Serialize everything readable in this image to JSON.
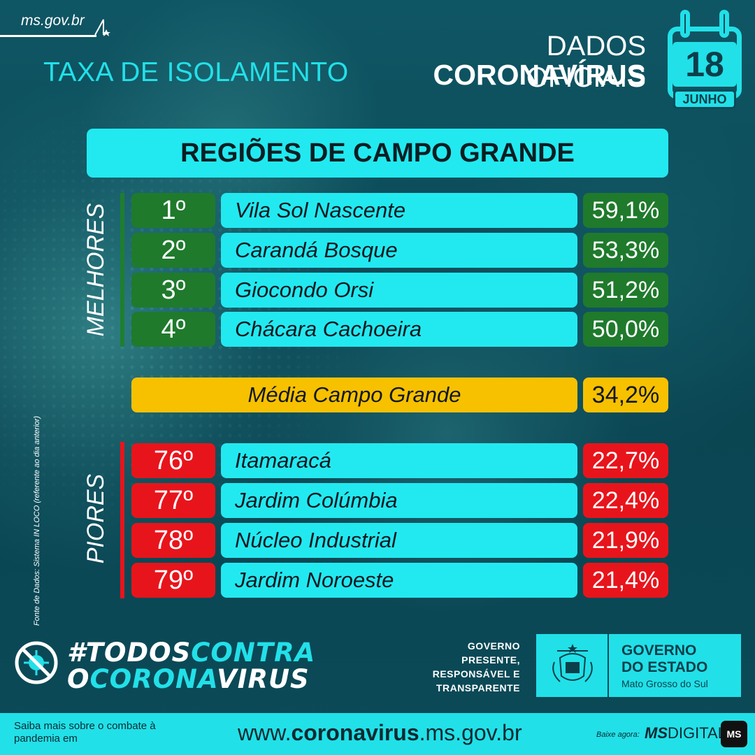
{
  "header": {
    "site": "ms.gov.br",
    "title": "TAXA DE ISOLAMENTO",
    "dados_line1": "DADOS OFICIAIS",
    "dados_line2": "CORONAVÍRUS",
    "calendar": {
      "day": "18",
      "month": "JUNHO"
    }
  },
  "main": {
    "section_title": "REGIÕES DE CAMPO GRANDE",
    "melhores_label": "MELHORES",
    "piores_label": "PIORES",
    "source_note": "Fonte de Dados: Sistema IN LOCO (referente ao dia anterior)",
    "melhores": [
      {
        "rank": "1º",
        "name": "Vila Sol Nascente",
        "pct": "59,1%"
      },
      {
        "rank": "2º",
        "name": "Carandá Bosque",
        "pct": "53,3%"
      },
      {
        "rank": "3º",
        "name": "Giocondo Orsi",
        "pct": "51,2%"
      },
      {
        "rank": "4º",
        "name": "Chácara Cachoeira",
        "pct": "50,0%"
      }
    ],
    "media": {
      "name": "Média Campo Grande",
      "pct": "34,2%"
    },
    "piores": [
      {
        "rank": "76º",
        "name": "Itamaracá",
        "pct": "22,7%"
      },
      {
        "rank": "77º",
        "name": "Jardim Colúmbia",
        "pct": "22,4%"
      },
      {
        "rank": "78º",
        "name": "Núcleo Industrial",
        "pct": "21,9%"
      },
      {
        "rank": "79º",
        "name": "Jardim Noroeste",
        "pct": "21,4%"
      }
    ]
  },
  "footer": {
    "hashtag": {
      "p1": "#TODOS",
      "p2": "CONTRA",
      "p3": "O",
      "p4": "CORONA",
      "p5": "VIRUS"
    },
    "gov_tag": [
      "GOVERNO",
      "PRESENTE,",
      "RESPONSÁVEL E",
      "TRANSPARENTE"
    ],
    "gov_box": {
      "l1": "GOVERNO",
      "l2": "DO ESTADO",
      "l3": "Mato Grosso do Sul"
    },
    "saiba": "Saiba mais sobre o combate à pandemia em",
    "url": {
      "pre": "www.",
      "bold": "coronavirus",
      "post": ".ms.gov.br"
    },
    "baixe": "Baixe agora:",
    "app": {
      "bold": "MS",
      "rest": "DIGITAL",
      "icon": "MS"
    }
  },
  "colors": {
    "cyan": "#22e9f0",
    "green": "#1f7a2c",
    "red": "#e8141b",
    "yellow": "#f7c100",
    "bg": "#0d4a57"
  }
}
